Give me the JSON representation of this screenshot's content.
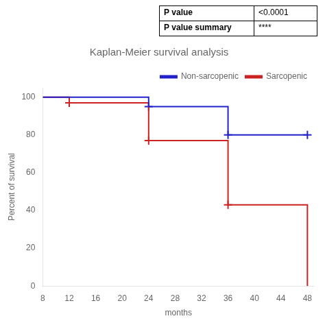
{
  "chart_data": {
    "type": "line",
    "title": "Kaplan-Meier survival analysis",
    "xlabel": "months",
    "ylabel": "Percent of survival",
    "xlim": [
      8,
      49
    ],
    "ylim": [
      0,
      105
    ],
    "xticks": [
      8,
      12,
      16,
      20,
      24,
      28,
      32,
      36,
      40,
      44,
      48
    ],
    "yticks": [
      0,
      20,
      40,
      60,
      80,
      100
    ],
    "grid": false,
    "legend": "upper right",
    "series": [
      {
        "name": "Non-sarcopenic",
        "color": "#2222cc",
        "marker": "+",
        "line_style": "steps",
        "x": [
          8,
          24,
          24,
          36,
          36,
          48
        ],
        "values": [
          100,
          100,
          95,
          95,
          80,
          80
        ],
        "censored": {
          "x": [
            24,
            36,
            48
          ],
          "values": [
            95,
            80,
            80
          ]
        }
      },
      {
        "name": "Sarcopenic",
        "color": "#cc2222",
        "marker": "+",
        "line_style": "steps",
        "x": [
          8,
          12,
          12,
          24,
          24,
          36,
          36,
          48,
          48
        ],
        "values": [
          100,
          100,
          97,
          97,
          77,
          77,
          43,
          43,
          0
        ],
        "censored": {
          "x": [
            12,
            24,
            36
          ],
          "values": [
            97,
            77,
            43
          ]
        }
      }
    ],
    "annotations": [
      [
        "P value",
        "<0.0001"
      ],
      [
        "P value summary",
        "****"
      ]
    ]
  }
}
